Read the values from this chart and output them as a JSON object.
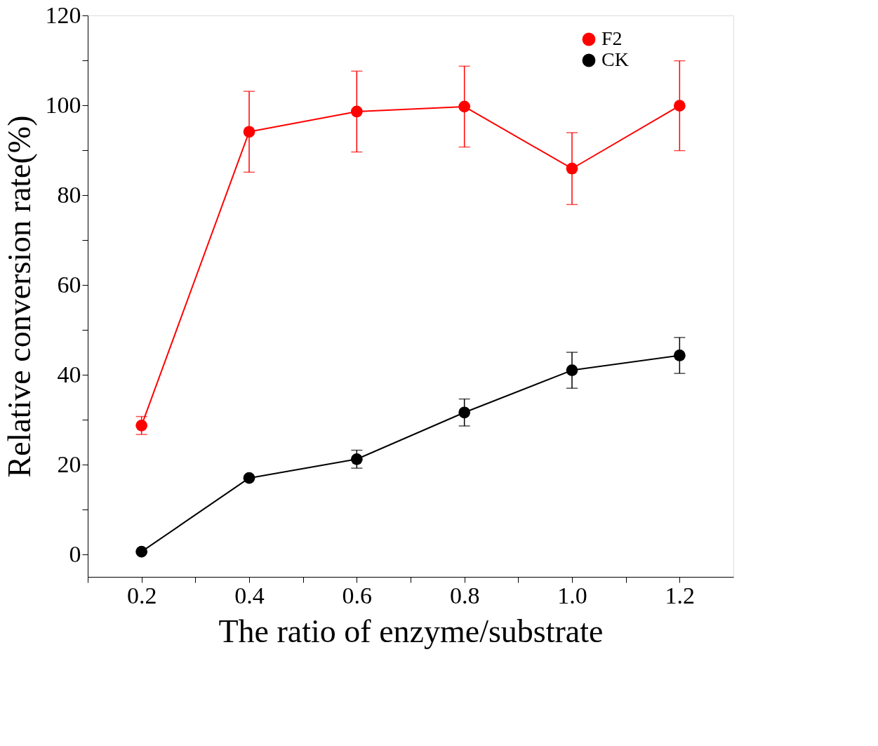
{
  "chart_data": {
    "type": "line",
    "xlabel": "The ratio of enzyme/substrate",
    "ylabel": "Relative conversion rate(%)",
    "x": [
      0.2,
      0.4,
      0.6,
      0.8,
      1.0,
      1.2
    ],
    "series": [
      {
        "name": "F2",
        "color": "#ff0000",
        "values": [
          28.7,
          94.1,
          98.6,
          99.7,
          85.9,
          99.9
        ],
        "errors": [
          2,
          9,
          9,
          9,
          8,
          10
        ]
      },
      {
        "name": "CK",
        "color": "#000000",
        "values": [
          0.6,
          17,
          21.2,
          31.6,
          41,
          44.3
        ],
        "errors": [
          null,
          null,
          2,
          3,
          4,
          4
        ]
      }
    ],
    "xlim": [
      0.1,
      1.3
    ],
    "ylim": [
      -5,
      120
    ],
    "xticks": [
      {
        "value": 0.1,
        "label": null
      },
      0.2,
      {
        "value": 0.3,
        "label": null
      },
      0.4,
      {
        "value": 0.5,
        "label": null
      },
      0.6,
      {
        "value": 0.7,
        "label": null
      },
      0.8,
      {
        "value": 0.9,
        "label": null
      },
      {
        "value": 1.0,
        "label": "1.0"
      },
      {
        "value": 1.1,
        "label": null
      },
      1.2
    ],
    "yticks": [
      0,
      {
        "value": 10,
        "label": null
      },
      20,
      {
        "value": 30,
        "label": null
      },
      40,
      {
        "value": 50,
        "label": null
      },
      60,
      {
        "value": 70,
        "label": null
      },
      80,
      {
        "value": 90,
        "label": null
      },
      100,
      {
        "value": 110,
        "label": null
      },
      120
    ],
    "legend": "top right",
    "marker": "circle",
    "line_style": "solid",
    "grid": false
  }
}
